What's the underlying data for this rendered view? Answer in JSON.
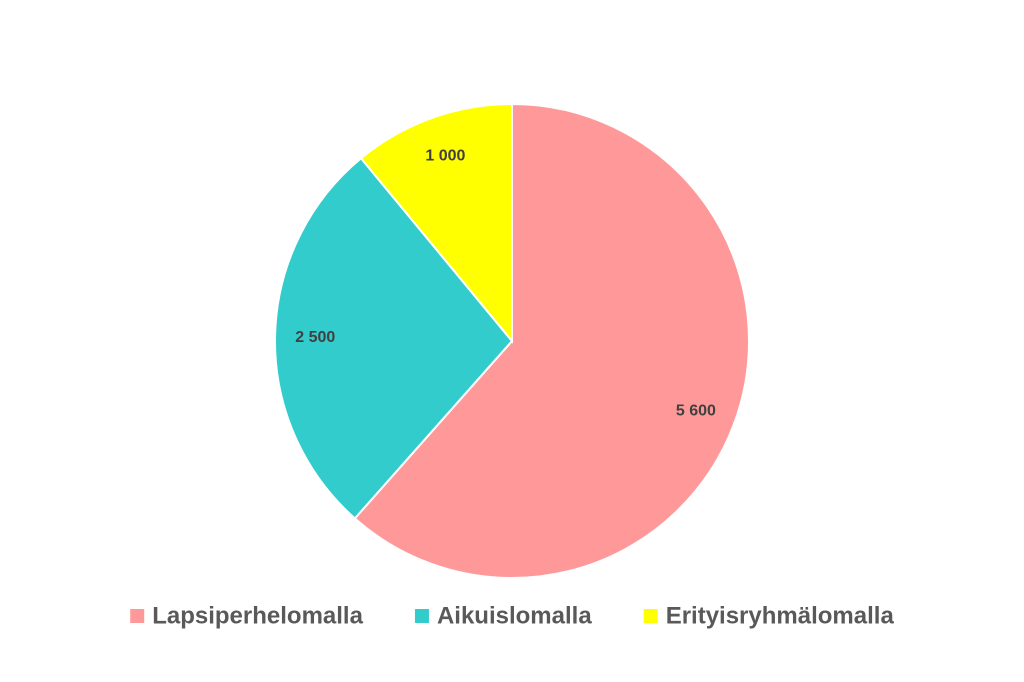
{
  "chart_data": {
    "type": "pie",
    "title": "",
    "categories": [
      "Lapsiperhelomalla",
      "Aikuislomalla",
      "Erityisryhmälomalla"
    ],
    "values": [
      5600,
      2500,
      1000
    ],
    "value_labels": [
      "5 600",
      "2 500",
      "1 000"
    ],
    "colors": [
      "#FF9999",
      "#33CCCC",
      "#FFFF00"
    ],
    "start_angle_deg": 0,
    "direction": "clockwise",
    "legend": {
      "position": "bottom",
      "items": [
        "Lapsiperhelomalla",
        "Aikuislomalla",
        "Erityisryhmälomalla"
      ]
    }
  }
}
